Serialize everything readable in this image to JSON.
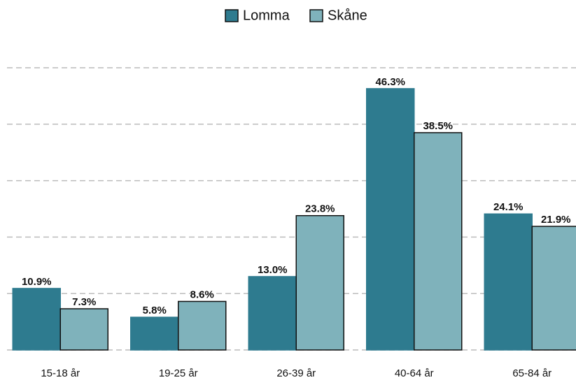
{
  "chart_data": {
    "type": "bar",
    "categories": [
      "15-18 år",
      "19-25 år",
      "26-39 år",
      "40-64 år",
      "65-84 år"
    ],
    "series": [
      {
        "name": "Lomma",
        "color": "#2e7b8f",
        "values": [
          10.9,
          5.8,
          13.0,
          46.3,
          24.1
        ],
        "value_labels": [
          "10.9%",
          "5.8%",
          "13.0%",
          "46.3%",
          "24.1%"
        ]
      },
      {
        "name": "Skåne",
        "color": "#7fb2bb",
        "values": [
          7.3,
          8.6,
          23.8,
          38.5,
          21.9
        ],
        "value_labels": [
          "7.3%",
          "8.6%",
          "23.8%",
          "38.5%",
          "21.9%"
        ]
      }
    ],
    "ylim": [
      0,
      50
    ],
    "yticks": [
      0,
      10,
      20,
      30,
      40,
      50
    ],
    "grid": true,
    "legend": "top"
  }
}
